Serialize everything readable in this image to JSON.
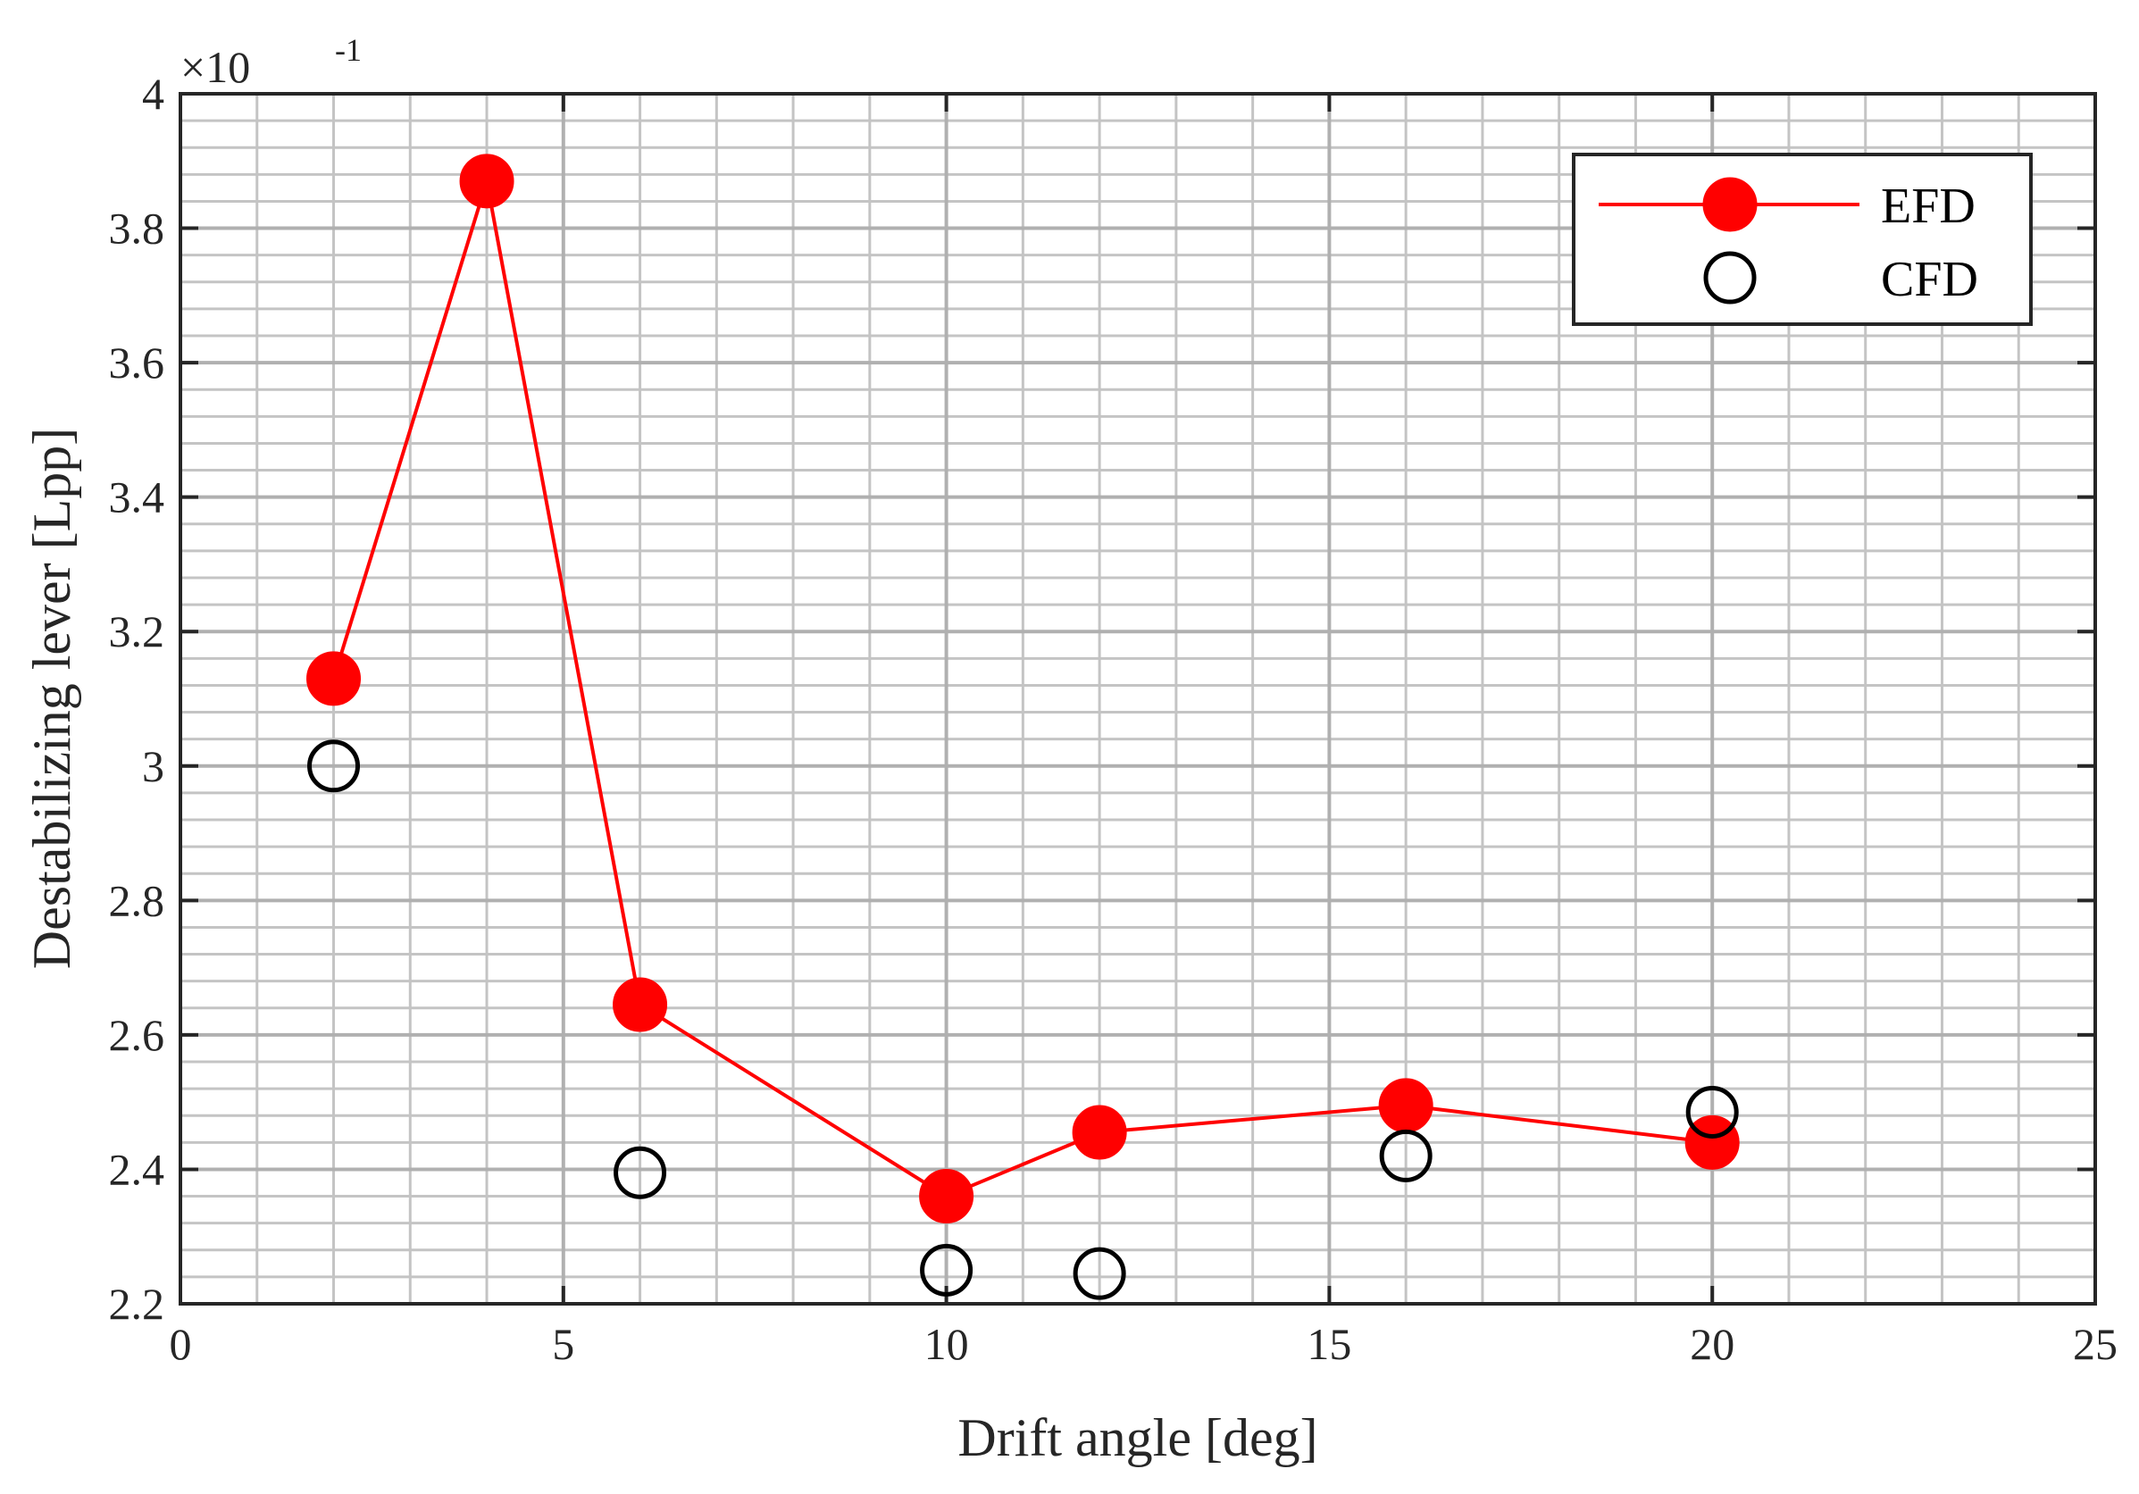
{
  "chart_data": {
    "type": "line",
    "xlabel": "Drift angle [deg]",
    "ylabel": "Destabilizing lever [Lpp]",
    "y_exponent_label": "×10",
    "y_exponent_power": "-1",
    "xlim": [
      0,
      25
    ],
    "ylim": [
      2.2,
      4
    ],
    "x_ticks": [
      "0",
      "5",
      "10",
      "15",
      "20",
      "25"
    ],
    "y_ticks": [
      "2.2",
      "2.4",
      "2.6",
      "2.8",
      "3",
      "3.2",
      "3.4",
      "3.6",
      "3.8",
      "4"
    ],
    "grid": true,
    "minor_grid": true,
    "legend_position": "top-right",
    "series": [
      {
        "name": "EFD",
        "color": "#ff0000",
        "marker": "filled-circle",
        "line": true,
        "x": [
          2,
          4,
          6,
          10,
          12,
          16,
          20
        ],
        "y": [
          3.13,
          3.87,
          2.645,
          2.36,
          2.455,
          2.495,
          2.44
        ]
      },
      {
        "name": "CFD",
        "color": "#000000",
        "marker": "open-circle",
        "line": false,
        "x": [
          2,
          6,
          10,
          12,
          16,
          20
        ],
        "y": [
          3.0,
          2.395,
          2.25,
          2.245,
          2.42,
          2.485
        ]
      }
    ]
  }
}
